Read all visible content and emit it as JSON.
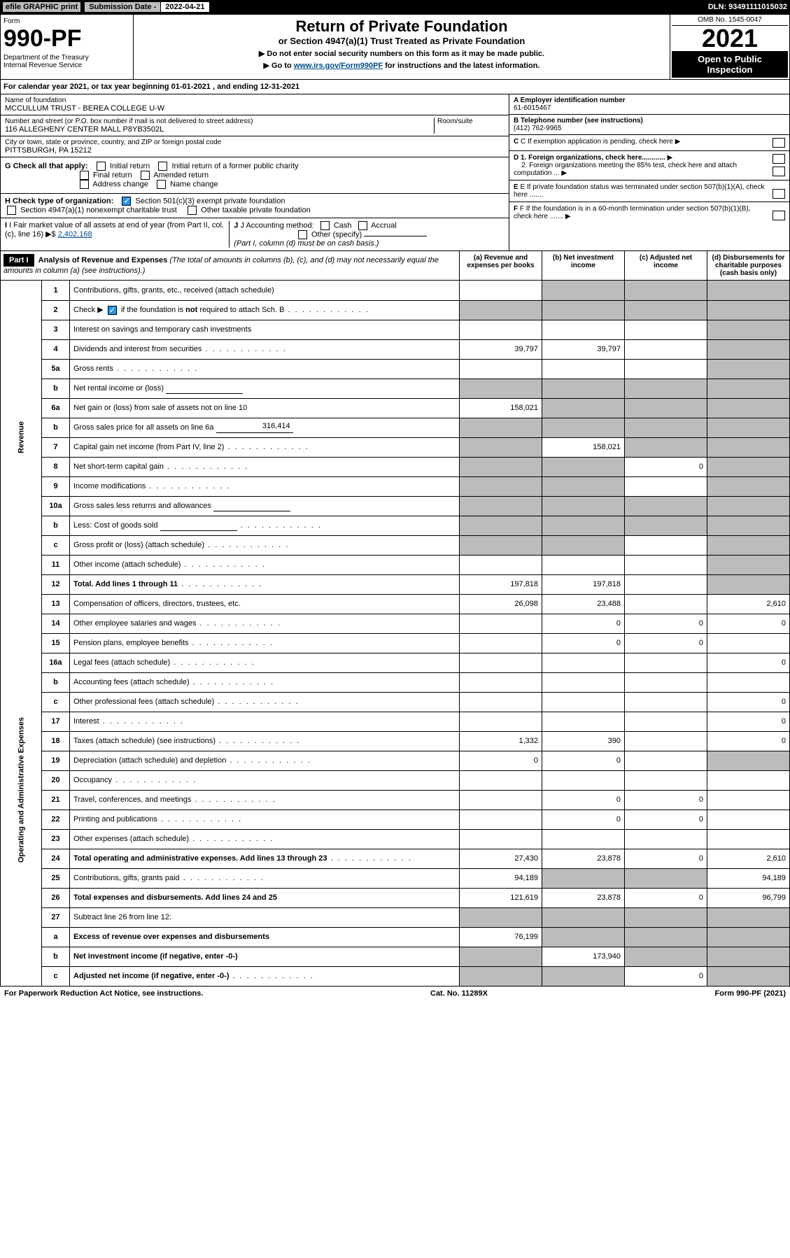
{
  "topbar": {
    "efile": "efile GRAPHIC print",
    "sub_label": "Submission Date - ",
    "sub_date": "2022-04-21",
    "dln": "DLN: 93491111015032"
  },
  "header": {
    "form_label": "Form",
    "form_num": "990-PF",
    "dept": "Department of the Treasury\nInternal Revenue Service",
    "title_main": "Return of Private Foundation",
    "title_sub": "or Section 4947(a)(1) Trust Treated as Private Foundation",
    "note1": "▶ Do not enter social security numbers on this form as it may be made public.",
    "note2_pre": "▶ Go to ",
    "note2_link": "www.irs.gov/Form990PF",
    "note2_post": " for instructions and the latest information.",
    "omb": "OMB No. 1545-0047",
    "year": "2021",
    "open_public": "Open to Public Inspection"
  },
  "cal_year": "For calendar year 2021, or tax year beginning 01-01-2021                           , and ending 12-31-2021",
  "foundation": {
    "name_label": "Name of foundation",
    "name": "MCCULLUM TRUST - BEREA COLLEGE U-W",
    "addr_label": "Number and street (or P.O. box number if mail is not delivered to street address)",
    "addr": "116 ALLEGHENY CENTER MALL P8YB3502L",
    "room_label": "Room/suite",
    "city_label": "City or town, state or province, country, and ZIP or foreign postal code",
    "city": "PITTSBURGH, PA  15212",
    "ein_label": "A Employer identification number",
    "ein": "61-6015467",
    "tel_label": "B Telephone number (see instructions)",
    "tel": "(412) 762-9965",
    "c_label": "C If exemption application is pending, check here",
    "d1": "D 1. Foreign organizations, check here............",
    "d2": "2. Foreign organizations meeting the 85% test, check here and attach computation ...",
    "e": "E If private foundation status was terminated under section 507(b)(1)(A), check here .......",
    "f": "F  If the foundation is in a 60-month termination under section 507(b)(1)(B), check here .......",
    "g_label": "G Check all that apply:",
    "g_opts": [
      "Initial return",
      "Initial return of a former public charity",
      "Final return",
      "Amended return",
      "Address change",
      "Name change"
    ],
    "h_label": "H Check type of organization:",
    "h_opt1": "Section 501(c)(3) exempt private foundation",
    "h_opt2": "Section 4947(a)(1) nonexempt charitable trust",
    "h_opt3": "Other taxable private foundation",
    "i_label": "I Fair market value of all assets at end of year (from Part II, col. (c), line 16)",
    "i_val": "2,402,168",
    "j_label": "J Accounting method:",
    "j_cash": "Cash",
    "j_accrual": "Accrual",
    "j_other": "Other (specify)",
    "j_note": "(Part I, column (d) must be on cash basis.)"
  },
  "part1": {
    "label": "Part I",
    "title": "Analysis of Revenue and Expenses",
    "title_note": " (The total of amounts in columns (b), (c), and (d) may not necessarily equal the amounts in column (a) (see instructions).)",
    "col_a": "(a)    Revenue and expenses per books",
    "col_b": "(b)    Net investment income",
    "col_c": "(c)   Adjusted net income",
    "col_d": "(d)   Disbursements for charitable purposes (cash basis only)"
  },
  "side_labels": {
    "revenue": "Revenue",
    "opex": "Operating and Administrative Expenses"
  },
  "rows": [
    {
      "n": "1",
      "desc": "Contributions, gifts, grants, etc., received (attach schedule)",
      "a": "",
      "b": "shade",
      "c": "shade",
      "d": "shade"
    },
    {
      "n": "2",
      "desc": "Check ▶ ☑ if the foundation is not required to attach Sch. B",
      "a": "shade",
      "b": "shade",
      "c": "shade",
      "d": "shade",
      "dots": true
    },
    {
      "n": "3",
      "desc": "Interest on savings and temporary cash investments",
      "a": "",
      "b": "",
      "c": "",
      "d": "shade"
    },
    {
      "n": "4",
      "desc": "Dividends and interest from securities",
      "a": "39,797",
      "b": "39,797",
      "c": "",
      "d": "shade",
      "dots": true
    },
    {
      "n": "5a",
      "desc": "Gross rents",
      "a": "",
      "b": "",
      "c": "",
      "d": "shade",
      "dots": true
    },
    {
      "n": "b",
      "desc": "Net rental income or (loss)",
      "a": "shade",
      "b": "shade",
      "c": "shade",
      "d": "shade",
      "inline": true
    },
    {
      "n": "6a",
      "desc": "Net gain or (loss) from sale of assets not on line 10",
      "a": "158,021",
      "b": "shade",
      "c": "shade",
      "d": "shade"
    },
    {
      "n": "b",
      "desc": "Gross sales price for all assets on line 6a",
      "a": "shade",
      "b": "shade",
      "c": "shade",
      "d": "shade",
      "inline": true,
      "inlineval": "316,414"
    },
    {
      "n": "7",
      "desc": "Capital gain net income (from Part IV, line 2)",
      "a": "shade",
      "b": "158,021",
      "c": "shade",
      "d": "shade",
      "dots": true
    },
    {
      "n": "8",
      "desc": "Net short-term capital gain",
      "a": "shade",
      "b": "shade",
      "c": "0",
      "d": "shade",
      "dots": true
    },
    {
      "n": "9",
      "desc": "Income modifications",
      "a": "shade",
      "b": "shade",
      "c": "",
      "d": "shade",
      "dots": true
    },
    {
      "n": "10a",
      "desc": "Gross sales less returns and allowances",
      "a": "shade",
      "b": "shade",
      "c": "shade",
      "d": "shade",
      "inline": true
    },
    {
      "n": "b",
      "desc": "Less: Cost of goods sold",
      "a": "shade",
      "b": "shade",
      "c": "shade",
      "d": "shade",
      "inline": true,
      "dots": true
    },
    {
      "n": "c",
      "desc": "Gross profit or (loss) (attach schedule)",
      "a": "shade",
      "b": "shade",
      "c": "",
      "d": "shade",
      "dots": true
    },
    {
      "n": "11",
      "desc": "Other income (attach schedule)",
      "a": "",
      "b": "",
      "c": "",
      "d": "shade",
      "dots": true
    },
    {
      "n": "12",
      "desc": "Total. Add lines 1 through 11",
      "a": "197,818",
      "b": "197,818",
      "c": "",
      "d": "shade",
      "bold": true,
      "dots": true
    },
    {
      "n": "13",
      "desc": "Compensation of officers, directors, trustees, etc.",
      "a": "26,098",
      "b": "23,488",
      "c": "",
      "d": "2,610"
    },
    {
      "n": "14",
      "desc": "Other employee salaries and wages",
      "a": "",
      "b": "0",
      "c": "0",
      "d": "0",
      "dots": true
    },
    {
      "n": "15",
      "desc": "Pension plans, employee benefits",
      "a": "",
      "b": "0",
      "c": "0",
      "d": "",
      "dots": true
    },
    {
      "n": "16a",
      "desc": "Legal fees (attach schedule)",
      "a": "",
      "b": "",
      "c": "",
      "d": "0",
      "dots": true
    },
    {
      "n": "b",
      "desc": "Accounting fees (attach schedule)",
      "a": "",
      "b": "",
      "c": "",
      "d": "",
      "dots": true
    },
    {
      "n": "c",
      "desc": "Other professional fees (attach schedule)",
      "a": "",
      "b": "",
      "c": "",
      "d": "0",
      "dots": true
    },
    {
      "n": "17",
      "desc": "Interest",
      "a": "",
      "b": "",
      "c": "",
      "d": "0",
      "dots": true
    },
    {
      "n": "18",
      "desc": "Taxes (attach schedule) (see instructions)",
      "a": "1,332",
      "b": "390",
      "c": "",
      "d": "0",
      "dots": true
    },
    {
      "n": "19",
      "desc": "Depreciation (attach schedule) and depletion",
      "a": "0",
      "b": "0",
      "c": "",
      "d": "shade",
      "dots": true
    },
    {
      "n": "20",
      "desc": "Occupancy",
      "a": "",
      "b": "",
      "c": "",
      "d": "",
      "dots": true
    },
    {
      "n": "21",
      "desc": "Travel, conferences, and meetings",
      "a": "",
      "b": "0",
      "c": "0",
      "d": "",
      "dots": true
    },
    {
      "n": "22",
      "desc": "Printing and publications",
      "a": "",
      "b": "0",
      "c": "0",
      "d": "",
      "dots": true
    },
    {
      "n": "23",
      "desc": "Other expenses (attach schedule)",
      "a": "",
      "b": "",
      "c": "",
      "d": "",
      "dots": true
    },
    {
      "n": "24",
      "desc": "Total operating and administrative expenses. Add lines 13 through 23",
      "a": "27,430",
      "b": "23,878",
      "c": "0",
      "d": "2,610",
      "bold": true,
      "dots": true
    },
    {
      "n": "25",
      "desc": "Contributions, gifts, grants paid",
      "a": "94,189",
      "b": "shade",
      "c": "shade",
      "d": "94,189",
      "dots": true
    },
    {
      "n": "26",
      "desc": "Total expenses and disbursements. Add lines 24 and 25",
      "a": "121,619",
      "b": "23,878",
      "c": "0",
      "d": "96,799",
      "bold": true
    },
    {
      "n": "27",
      "desc": "Subtract line 26 from line 12:",
      "a": "shade",
      "b": "shade",
      "c": "shade",
      "d": "shade"
    },
    {
      "n": "a",
      "desc": "Excess of revenue over expenses and disbursements",
      "a": "76,199",
      "b": "shade",
      "c": "shade",
      "d": "shade",
      "bold": true
    },
    {
      "n": "b",
      "desc": "Net investment income (if negative, enter -0-)",
      "a": "shade",
      "b": "173,940",
      "c": "shade",
      "d": "shade",
      "bold": true
    },
    {
      "n": "c",
      "desc": "Adjusted net income (if negative, enter -0-)",
      "a": "shade",
      "b": "shade",
      "c": "0",
      "d": "shade",
      "bold": true,
      "dots": true
    }
  ],
  "footer": {
    "left": "For Paperwork Reduction Act Notice, see instructions.",
    "mid": "Cat. No. 11289X",
    "right": "Form 990-PF (2021)"
  },
  "colors": {
    "shade": "#bcbcbc",
    "link": "#004b8d",
    "check": "#2196f3"
  }
}
